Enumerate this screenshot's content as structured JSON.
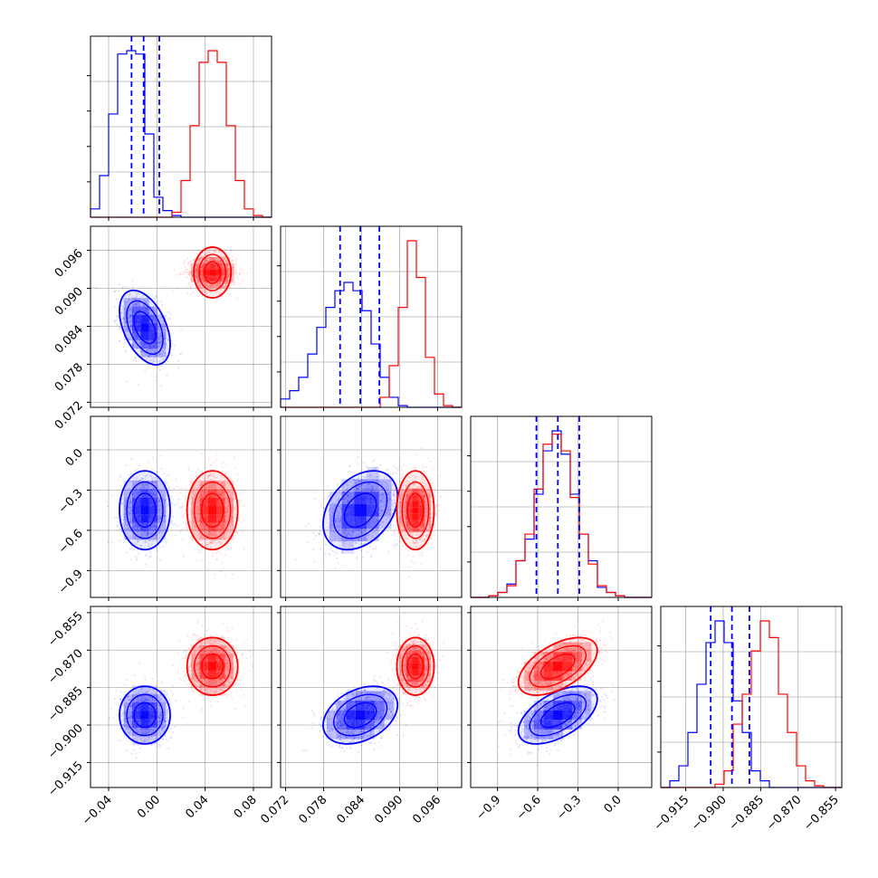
{
  "chart_data": {
    "type": "corner",
    "xlabel": "",
    "ylabel": "",
    "title": "",
    "grid": true,
    "series": [
      {
        "color": "#0000ff",
        "means": [
          -0.01,
          0.0838,
          -0.45,
          -0.896
        ],
        "sds": [
          0.01,
          0.0028,
          0.14,
          0.0055
        ],
        "corr": [
          [
            1,
            -0.45,
            0,
            0
          ],
          [
            -0.45,
            1,
            0.35,
            0.35
          ],
          [
            0,
            0.35,
            1,
            0.55
          ],
          [
            0,
            0.35,
            0.55,
            1
          ]
        ]
      },
      {
        "color": "#ff0000",
        "means": [
          0.046,
          0.0925,
          -0.45,
          -0.8765
        ],
        "sds": [
          0.01,
          0.0014,
          0.14,
          0.0055
        ],
        "corr": [
          [
            1,
            0,
            0,
            0
          ],
          [
            0,
            1,
            0,
            0
          ],
          [
            0,
            0,
            1,
            0.55
          ],
          [
            0,
            0,
            0.55,
            1
          ]
        ]
      }
    ],
    "quantile_lines": [
      [
        -0.021,
        -0.011,
        0.002
      ],
      [
        0.0806,
        0.0838,
        0.0868
      ],
      [
        -0.61,
        -0.45,
        -0.29
      ],
      [
        -0.905,
        -0.8965,
        -0.8895
      ]
    ],
    "parameters": [
      {
        "range": [
          -0.055,
          0.095
        ],
        "ticks": [
          -0.04,
          0.0,
          0.04,
          0.08
        ],
        "tick_labels": [
          "−0.04",
          "0.00",
          "0.04",
          "0.08"
        ]
      },
      {
        "range": [
          0.0712,
          0.0998
        ],
        "ticks": [
          0.072,
          0.078,
          0.084,
          0.09,
          0.096
        ],
        "tick_labels": [
          "0.072",
          "0.078",
          "0.084",
          "0.090",
          "0.096"
        ]
      },
      {
        "range": [
          -1.1,
          0.25
        ],
        "ticks": [
          -0.9,
          -0.6,
          -0.3,
          0.0
        ],
        "tick_labels": [
          "−0.9",
          "−0.6",
          "−0.3",
          "0.0"
        ]
      },
      {
        "range": [
          -0.925,
          -0.8525
        ],
        "ticks": [
          -0.915,
          -0.9,
          -0.885,
          -0.87,
          -0.855
        ],
        "tick_labels": [
          "−0.915",
          "−0.900",
          "−0.885",
          "−0.870",
          "−0.855"
        ]
      }
    ],
    "histograms": [
      {
        "blue": [
          0.05,
          0.25,
          0.62,
          0.98,
          1.0,
          0.98,
          0.5,
          0.12,
          0.04,
          0.01,
          0,
          0,
          0,
          0,
          0,
          0,
          0,
          0,
          0,
          0
        ],
        "red": [
          0,
          0,
          0,
          0,
          0,
          0,
          0,
          0,
          0,
          0.03,
          0.22,
          0.55,
          0.93,
          1.0,
          0.93,
          0.55,
          0.22,
          0.05,
          0.01,
          0
        ]
      },
      {
        "blue": [
          0.05,
          0.1,
          0.18,
          0.32,
          0.48,
          0.6,
          0.7,
          0.75,
          0.7,
          0.58,
          0.38,
          0.18,
          0.06,
          0.01,
          0,
          0,
          0,
          0,
          0,
          0
        ],
        "red": [
          0,
          0,
          0,
          0,
          0,
          0,
          0,
          0,
          0,
          0,
          0,
          0.06,
          0.25,
          0.6,
          1.0,
          0.78,
          0.3,
          0.08,
          0.01,
          0
        ]
      },
      {
        "blue": [
          0,
          0,
          0.01,
          0.03,
          0.08,
          0.22,
          0.35,
          0.62,
          0.88,
          1.0,
          0.86,
          0.62,
          0.38,
          0.22,
          0.06,
          0.03,
          0.01,
          0,
          0,
          0
        ],
        "red": [
          0,
          0,
          0.01,
          0.03,
          0.07,
          0.22,
          0.38,
          0.65,
          0.92,
          0.98,
          0.88,
          0.6,
          0.38,
          0.2,
          0.07,
          0.03,
          0.01,
          0,
          0,
          0
        ]
      },
      {
        "blue": [
          0,
          0.04,
          0.13,
          0.33,
          0.62,
          0.87,
          1.0,
          0.87,
          0.52,
          0.33,
          0.1,
          0.04,
          0,
          0,
          0,
          0,
          0,
          0,
          0,
          0
        ],
        "red": [
          0,
          0,
          0,
          0,
          0,
          0,
          0.02,
          0.1,
          0.38,
          0.56,
          0.82,
          1.0,
          0.9,
          0.56,
          0.33,
          0.13,
          0.04,
          0.01,
          0,
          0
        ]
      }
    ]
  }
}
